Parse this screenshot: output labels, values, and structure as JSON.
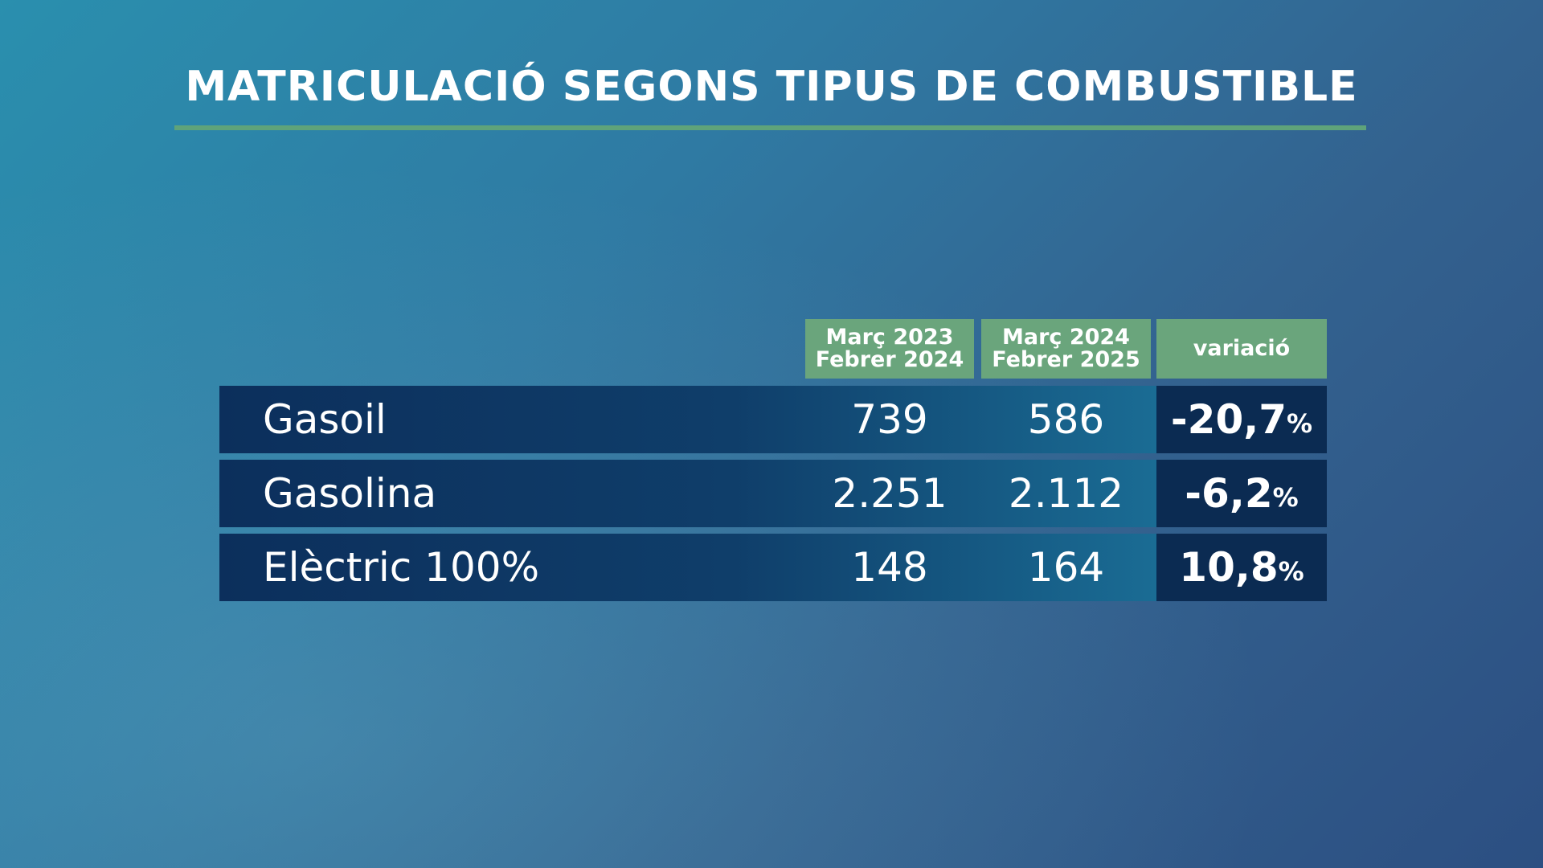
{
  "title": "MATRICULACIÓ SEGONS TIPUS DE COMBUSTIBLE",
  "table": {
    "headers": [
      [
        "Març 2023",
        "Febrer 2024"
      ],
      [
        "Març 2024",
        "Febrer 2025"
      ],
      [
        "variació"
      ]
    ],
    "rows": [
      {
        "label": "Gasoil",
        "col1": "739",
        "col2": "586",
        "variation": "-20,7",
        "unit": "%"
      },
      {
        "label": "Gasolina",
        "col1": "2.251",
        "col2": "2.112",
        "variation": "-6,2",
        "unit": "%"
      },
      {
        "label": "Elèctric 100%",
        "col1": "148",
        "col2": "164",
        "variation": "10,8",
        "unit": "%"
      }
    ]
  }
}
